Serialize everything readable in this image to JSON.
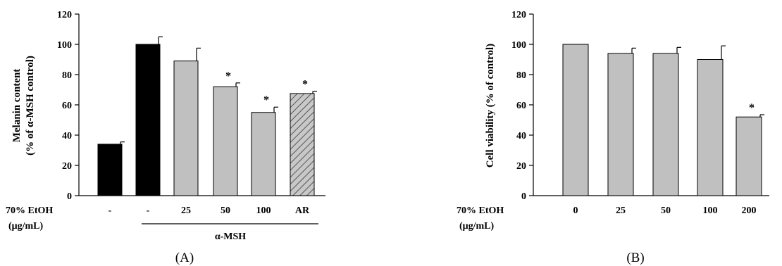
{
  "chart_data": [
    {
      "type": "bar",
      "panel_label": "(A)",
      "ylabel_line1": "Melanin content",
      "ylabel_line2": "(% of α-MSH control)",
      "ylim": [
        0,
        120
      ],
      "yticks": [
        "0",
        "20",
        "40",
        "60",
        "80",
        "100",
        "120"
      ],
      "treatment_label_line1": "70% EtOH",
      "treatment_label_line2": "(μg/mL)",
      "group_label": "α-MSH",
      "categories": [
        "-",
        "-",
        "25",
        "50",
        "100",
        "AR"
      ],
      "values": [
        34,
        100,
        89,
        72,
        55,
        67.5
      ],
      "errors": [
        1.5,
        5,
        8.5,
        2.5,
        3.5,
        1.5
      ],
      "significant": [
        "",
        "",
        "",
        "*",
        "*",
        "*"
      ],
      "fills": [
        "#000000",
        "#000000",
        "#c0c0c0",
        "#c0c0c0",
        "#c0c0c0",
        "hatch"
      ]
    },
    {
      "type": "bar",
      "panel_label": "(B)",
      "ylabel_line1": "Cell viability (% of control)",
      "ylim": [
        0,
        120
      ],
      "yticks": [
        "0",
        "20",
        "40",
        "60",
        "80",
        "100",
        "120"
      ],
      "treatment_label_line1": "70% EtOH",
      "treatment_label_line2": "(μg/mL)",
      "categories": [
        "0",
        "25",
        "50",
        "100",
        "200"
      ],
      "values": [
        100,
        94,
        94,
        90,
        52
      ],
      "errors": [
        0,
        3.5,
        4,
        9,
        1.5
      ],
      "significant": [
        "",
        "",
        "",
        "",
        "*"
      ],
      "fills": [
        "#c0c0c0",
        "#c0c0c0",
        "#c0c0c0",
        "#c0c0c0",
        "#c0c0c0"
      ]
    }
  ]
}
